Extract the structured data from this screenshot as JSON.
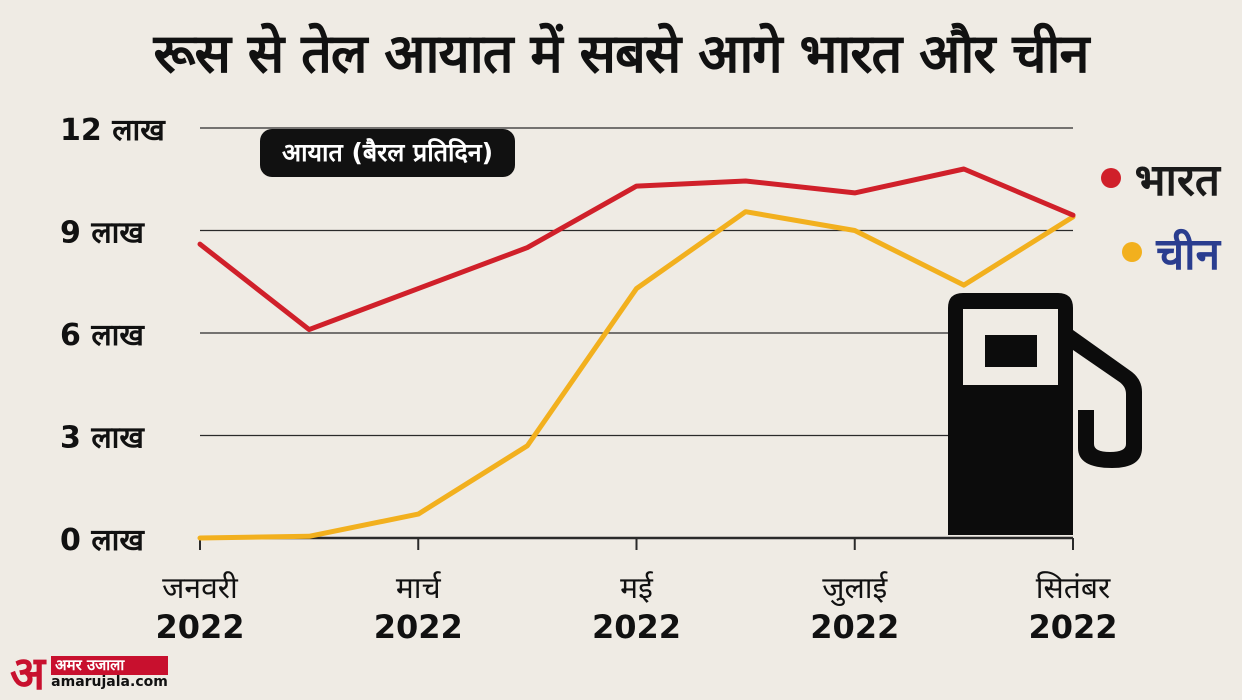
{
  "title": "रूस से तेल आयात में सबसे आगे भारत और चीन",
  "badge": "आयात (बैरल प्रतिदिन)",
  "logo": {
    "mark": "अ",
    "name": "अमर उजाला",
    "url": "amarujala.com"
  },
  "colors": {
    "india": "#d0202a",
    "china": "#f2b01e",
    "grid": "#2a2a2a",
    "text": "#111111",
    "legend_china": "#2a3d8f"
  },
  "icons": {
    "fuel": "fuel-pump-icon"
  },
  "chart_data": {
    "type": "line",
    "x": [
      "2022-01",
      "2022-02",
      "2022-03",
      "2022-04",
      "2022-05",
      "2022-06",
      "2022-07",
      "2022-08",
      "2022-09"
    ],
    "x_tick_labels": [
      {
        "x": "2022-01",
        "month": "जनवरी",
        "year": "2022"
      },
      {
        "x": "2022-03",
        "month": "मार्च",
        "year": "2022"
      },
      {
        "x": "2022-05",
        "month": "मई",
        "year": "2022"
      },
      {
        "x": "2022-07",
        "month": "जुलाई",
        "year": "2022"
      },
      {
        "x": "2022-09",
        "month": "सितंबर",
        "year": "2022"
      }
    ],
    "y_ticks": [
      {
        "value": 0,
        "label": "0 लाख"
      },
      {
        "value": 300000,
        "label": "3 लाख"
      },
      {
        "value": 600000,
        "label": "6 लाख"
      },
      {
        "value": 900000,
        "label": "9 लाख"
      },
      {
        "value": 1200000,
        "label": "12 लाख"
      }
    ],
    "ylim": [
      0,
      1200000
    ],
    "grid": true,
    "legend_position": "right",
    "series": [
      {
        "name": "भारत",
        "color": "#d0202a",
        "values": [
          860000,
          610000,
          730000,
          850000,
          1030000,
          1045000,
          1010000,
          1080000,
          945000
        ]
      },
      {
        "name": "चीन",
        "color": "#f2b01e",
        "values": [
          0,
          5000,
          70000,
          270000,
          730000,
          955000,
          900000,
          740000,
          940000
        ]
      }
    ]
  }
}
